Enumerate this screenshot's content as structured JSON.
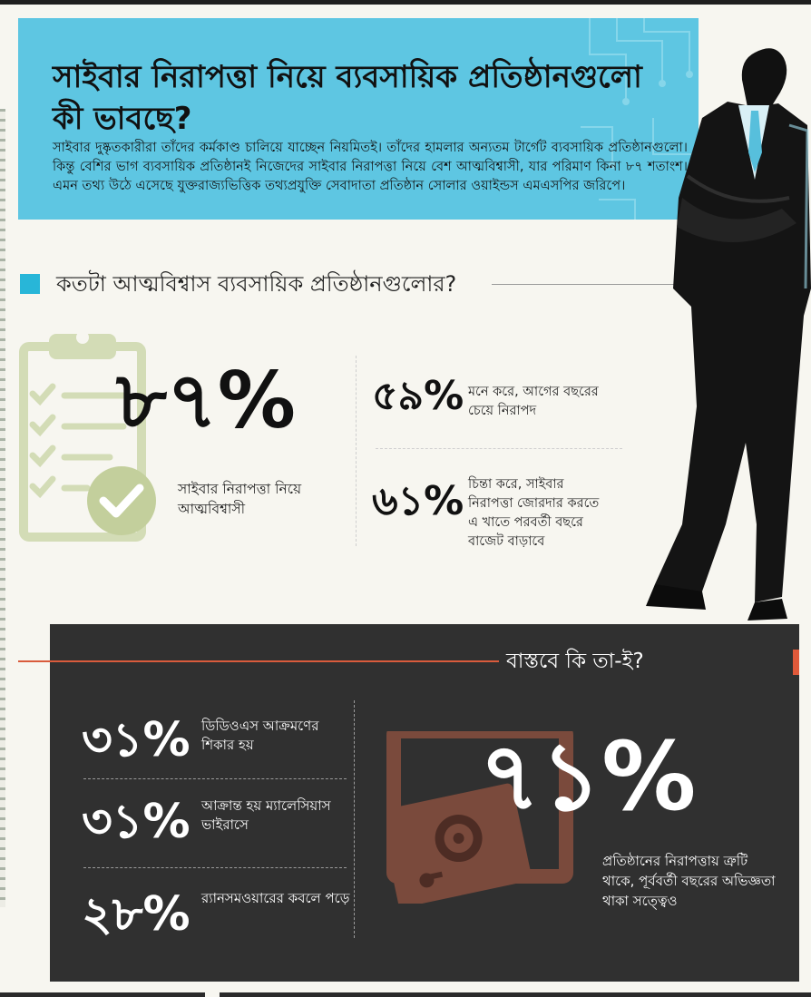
{
  "header": {
    "title": "সাইবার নিরাপত্তা নিয়ে ব্যবসায়িক প্রতিষ্ঠানগুলো কী ভাবছে?",
    "intro": "সাইবার দুষ্কৃতকারীরা তাঁদের কর্মকাণ্ড চালিয়ে যাচ্ছেন নিয়মিতই। তাঁদের হামলার অন্যতম টার্গেট ব্যবসায়িক প্রতিষ্ঠানগুলো। কিন্তু বেশির ভাগ ব্যবসায়িক প্রতিষ্ঠানই নিজেদের সাইবার নিরাপত্তা নিয়ে বেশ আত্মবিশ্বাসী, যার পরিমাণ কিনা ৮৭ শতাংশ। এমন তথ্য উঠে এসেছে যুক্তরাজ্যভিত্তিক তথ্যপ্রযুক্তি সেবাদাতা প্রতিষ্ঠান সোলার ওয়াইন্ডস এমএসপির জরিপে।"
  },
  "confidence": {
    "title": "কতটা আত্মবিশ্বাস ব্যবসায়িক প্রতিষ্ঠানগুলোর?",
    "main_value": "৮৭%",
    "main_caption": "সাইবার নিরাপত্তা নিয়ে আত্মবিশ্বাসী",
    "stats": [
      {
        "value": "৫৯%",
        "caption": "মনে করে, আগের বছরের চেয়ে নিরাপদ"
      },
      {
        "value": "৬১%",
        "caption": "চিন্তা করে, সাইবার নিরাপত্তা জোরদার করতে এ খাতে পরবর্তী বছরে বাজেট বাড়াবে"
      }
    ]
  },
  "reality": {
    "title": "বাস্তবে কি তা-ই?",
    "stats": [
      {
        "value": "৩১%",
        "caption": "ডিডিওএস আক্রমণের শিকার হয়"
      },
      {
        "value": "৩১%",
        "caption": "আক্রান্ত হয় ম্যালেসিয়াস ভাইরাসে"
      },
      {
        "value": "২৮%",
        "caption": "র‍্যানসমওয়ারের কবলে পড়ে"
      }
    ],
    "main_value": "৭১%",
    "main_caption": "প্রতিষ্ঠানের নিরাপত্তায় ত্রুটি থাকে, পূর্ববর্তী বছরের অভিজ্ঞতা থাকা সত্ত্বেও"
  },
  "colors": {
    "header_bg": "#5ec6e2",
    "accent_blue": "#28b6d8",
    "dark_panel": "#303030",
    "accent_red": "#e0593a",
    "clipboard_green": "#d3dcb6",
    "safe_brown": "#7a4a3c"
  },
  "icons": [
    "clipboard-checklist-icon",
    "checkmark-circle-icon",
    "businessman-illustration",
    "safe-icon",
    "circuit-pattern"
  ]
}
